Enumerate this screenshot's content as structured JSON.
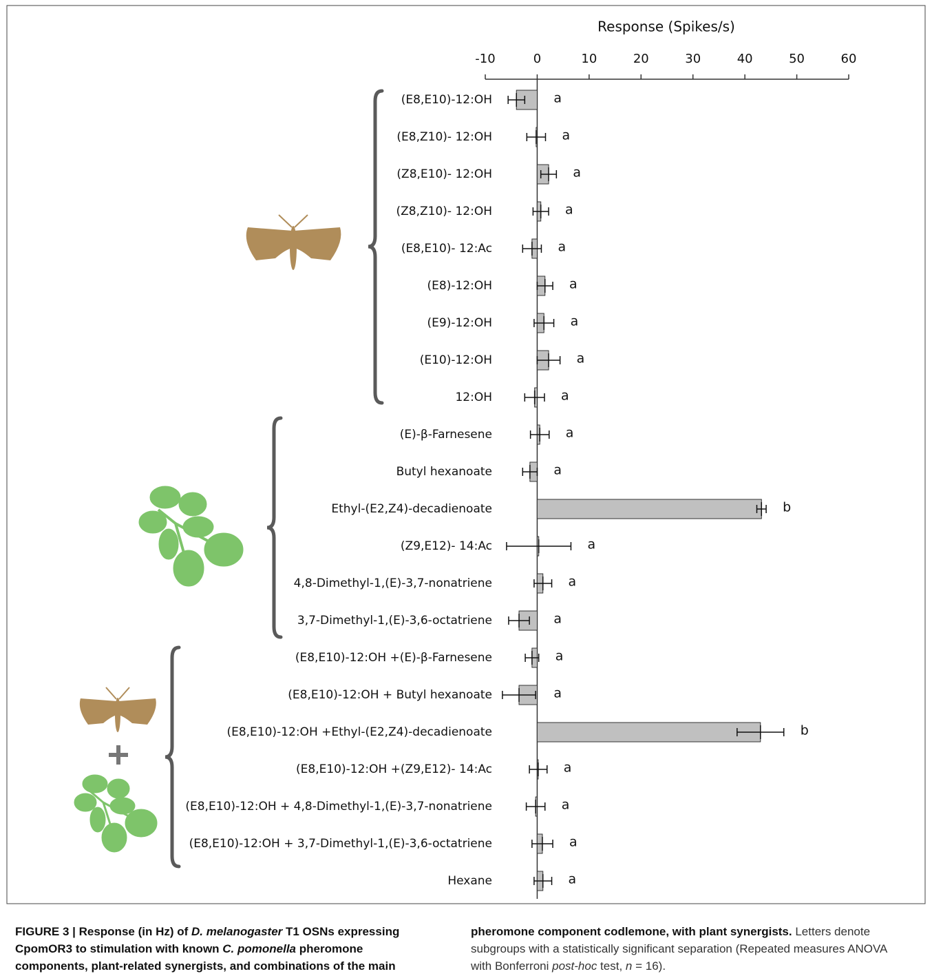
{
  "chart_data": {
    "type": "bar",
    "orientation": "horizontal",
    "x_label": "Response (Spikes/s)",
    "xlim": [
      -10,
      60
    ],
    "xticks": [
      -10,
      0,
      10,
      20,
      30,
      40,
      50,
      60
    ],
    "categories": [
      "(E8,E10)-12:OH",
      "(E8,Z10)- 12:OH",
      "(Z8,E10)- 12:OH",
      "(Z8,Z10)- 12:OH",
      "(E8,E10)- 12:Ac",
      "(E8)-12:OH",
      "(E9)-12:OH",
      "(E10)-12:OH",
      "12:OH",
      "(E)-β-Farnesene",
      "Butyl hexanoate",
      "Ethyl-(E2,Z4)-decadienoate",
      "(Z9,E12)- 14:Ac",
      "4,8-Dimethyl-1,(E)-3,7-nonatriene",
      "3,7-Dimethyl-1,(E)-3,6-octatriene",
      "(E8,E10)-12:OH +(E)-β-Farnesene",
      "(E8,E10)-12:OH + Butyl hexanoate",
      "(E8,E10)-12:OH +Ethyl-(E2,Z4)-decadienoate",
      "(E8,E10)-12:OH +(Z9,E12)- 14:Ac",
      "(E8,E10)-12:OH + 4,8-Dimethyl-1,(E)-3,7-nonatriene",
      "(E8,E10)-12:OH + 3,7-Dimethyl-1,(E)-3,6-octatriene",
      "Hexane"
    ],
    "values": [
      -4,
      -0.2,
      2.2,
      0.7,
      -1,
      1.5,
      1.3,
      2.2,
      -0.5,
      0.5,
      -1.4,
      43.2,
      0.3,
      1.1,
      -3.5,
      -1,
      -3.5,
      43,
      0.2,
      -0.3,
      1,
      1.1
    ],
    "errors": [
      1.6,
      1.8,
      1.5,
      1.5,
      1.8,
      1.5,
      1.9,
      2.2,
      1.9,
      1.8,
      1.4,
      0.9,
      6.2,
      1.7,
      2,
      1.3,
      3.2,
      4.5,
      1.7,
      1.8,
      2,
      1.7
    ],
    "letters": [
      "a",
      "a",
      "a",
      "a",
      "a",
      "a",
      "a",
      "a",
      "a",
      "a",
      "a",
      "b",
      "a",
      "a",
      "a",
      "a",
      "a",
      "b",
      "a",
      "a",
      "a",
      "a"
    ],
    "color": "#c0c0c0"
  },
  "caption": {
    "parts": [
      "FIGURE 3 | Response (in Hz) of ",
      "D. melanogaster",
      " T1 OSNs expressing CpomOR3 to stimulation with known ",
      "C. pomonella",
      " pheromone components, plant-related synergists, and combinations of the main pheromone component codlemone, with plant synergists.",
      " Letters denote subgroups with a statistically significant separation (Repeated measures ANOVA with Bonferroni ",
      "post-hoc",
      " test, ",
      "n",
      " = 16)."
    ]
  }
}
